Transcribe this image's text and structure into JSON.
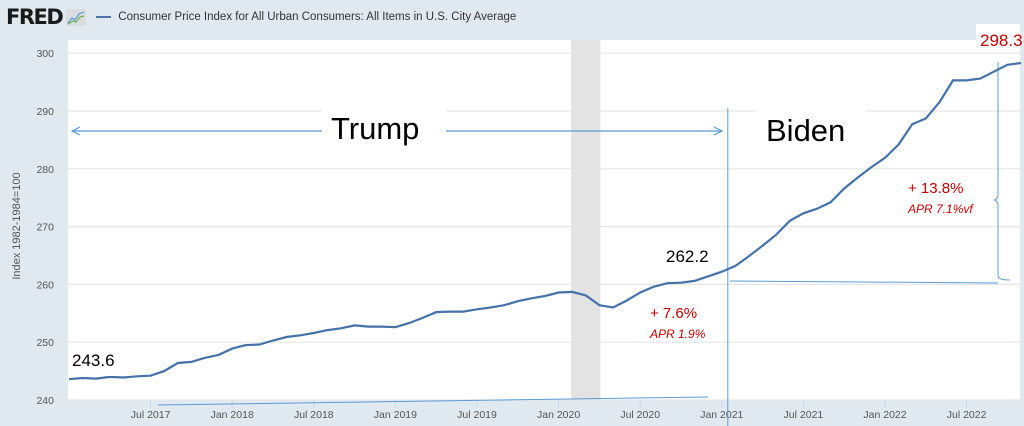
{
  "header": {
    "logo": "FRED",
    "logo_icon": "chart-trend-icon",
    "series_title": "Consumer Price Index for All Urban Consumers: All Items in U.S. City Average"
  },
  "colors": {
    "line": "#4572a7",
    "annotation": "#5b9bd5",
    "red": "#c00000",
    "recession": "#e3e3e3"
  },
  "chart_data": {
    "type": "line",
    "title": "Consumer Price Index for All Urban Consumers: All Items in U.S. City Average",
    "ylabel": "Index 1982-1984=100",
    "xlabel": "",
    "ylim": [
      240,
      300
    ],
    "yticks": [
      240,
      250,
      260,
      270,
      280,
      290,
      300
    ],
    "xticks": [
      "Jul 2017",
      "Jan 2018",
      "Jul 2018",
      "Jan 2019",
      "Jul 2019",
      "Jan 2020",
      "Jul 2020",
      "Jan 2021",
      "Jul 2021",
      "Jan 2022",
      "Jul 2022"
    ],
    "x_start": "Jan 2017",
    "x_end": "Nov 2022",
    "grid": true,
    "recession_shading": [
      "Feb 2020",
      "Apr 2020"
    ],
    "series": [
      {
        "name": "CPIAUCSL",
        "values": [
          243.6,
          243.8,
          243.7,
          244.0,
          243.9,
          244.1,
          244.2,
          245.0,
          246.4,
          246.6,
          247.3,
          247.8,
          248.9,
          249.5,
          249.6,
          250.3,
          250.9,
          251.2,
          251.6,
          252.1,
          252.4,
          252.9,
          252.7,
          252.7,
          252.6,
          253.3,
          254.2,
          255.2,
          255.3,
          255.3,
          255.7,
          256.0,
          256.4,
          257.1,
          257.6,
          258.0,
          258.6,
          258.7,
          258.1,
          256.4,
          256.0,
          257.2,
          258.6,
          259.6,
          260.2,
          260.3,
          260.6,
          261.4,
          262.2,
          263.2,
          264.9,
          266.7,
          268.6,
          271.0,
          272.3,
          273.1,
          274.2,
          276.6,
          278.5,
          280.3,
          281.9,
          284.2,
          287.7,
          288.7,
          291.5,
          295.3,
          295.3,
          295.6,
          296.8,
          298.0,
          298.3
        ]
      }
    ],
    "annotations": {
      "start_value": "243.6",
      "biden_start_value": "262.2",
      "end_value": "298.3",
      "trump_label": "Trump",
      "biden_label": "Biden",
      "trump_change": "+ 7.6%",
      "trump_apr": "APR 1.9%",
      "biden_change": "+ 13.8%",
      "biden_apr": "APR 7.1%vf"
    }
  }
}
